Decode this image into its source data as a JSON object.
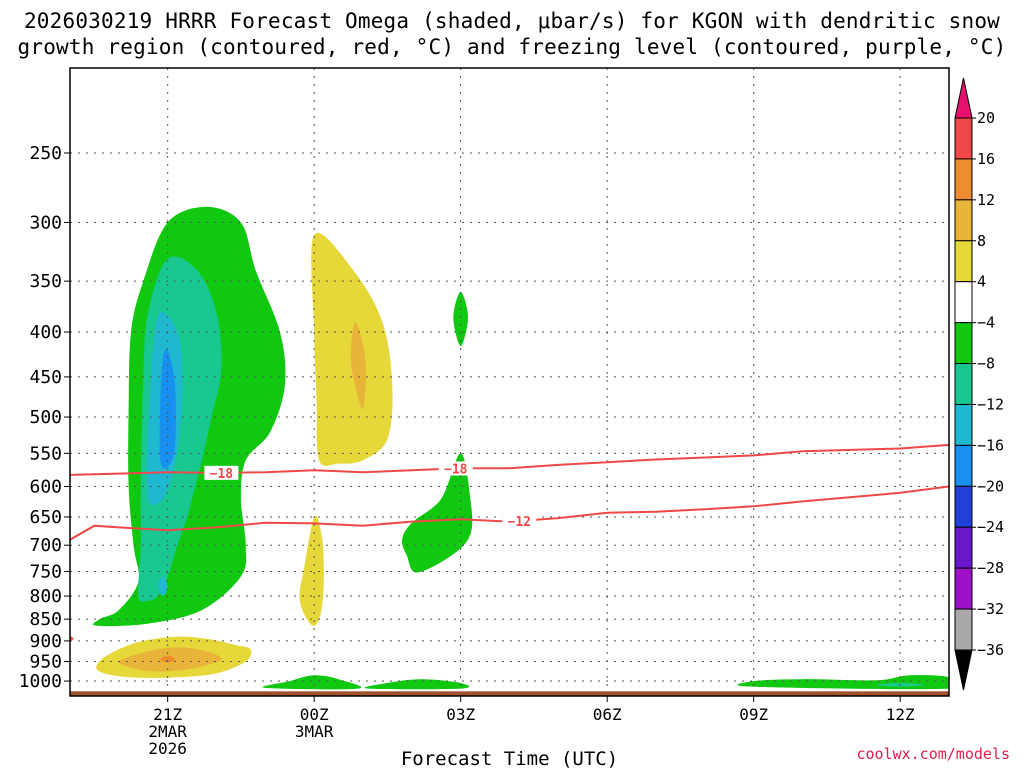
{
  "title_lines": [
    "2026030219 HRRR Forecast Omega (shaded, μbar/s) for KGON with dendritic snow",
    "growth region (contoured, red, °C) and freezing level (contoured, purple, °C)"
  ],
  "credit": "coolwx.com/models",
  "chart_data": {
    "type": "contourf",
    "title": "2026030219 HRRR Forecast Omega (shaded, μbar/s) for KGON with dendritic snow growth region (contoured, red, °C) and freezing level (contoured, purple, °C)",
    "xlabel": "Forecast Time (UTC)",
    "ylabel": "",
    "x_ticks": [
      {
        "hour": 2,
        "lines": [
          "21Z",
          "2MAR",
          "2026"
        ]
      },
      {
        "hour": 5,
        "lines": [
          "00Z",
          "3MAR"
        ]
      },
      {
        "hour": 8,
        "lines": [
          "03Z"
        ]
      },
      {
        "hour": 11,
        "lines": [
          "06Z"
        ]
      },
      {
        "hour": 14,
        "lines": [
          "09Z"
        ]
      },
      {
        "hour": 17,
        "lines": [
          "12Z"
        ]
      }
    ],
    "x_range_hours": [
      0.0,
      18.0
    ],
    "y_range_hpa": [
      1040,
      200
    ],
    "y_scale": "log",
    "y_ticks": [
      250,
      300,
      350,
      400,
      450,
      500,
      550,
      600,
      650,
      700,
      750,
      800,
      850,
      900,
      950,
      1000
    ],
    "grid": true,
    "colorbar": {
      "position": "right",
      "labels": [
        "20",
        "16",
        "12",
        "8",
        "4",
        "−4",
        "−8",
        "−12",
        "−16",
        "−20",
        "−24",
        "−28",
        "−32",
        "−36"
      ],
      "colors": [
        "#e8106e",
        "#f04848",
        "#ee8c30",
        "#e8b43a",
        "#e6d838",
        "#ffffff",
        "#10c810",
        "#18c890",
        "#20b8d0",
        "#1890f0",
        "#2040d8",
        "#6818c8",
        "#a010c8",
        "#a8a8a8",
        "#000000"
      ]
    },
    "shaded_regions": [
      {
        "level": "-8",
        "color": "#10c810",
        "points": [
          [
            1.0,
            830
          ],
          [
            1.4,
            770
          ],
          [
            1.3,
            700
          ],
          [
            1.2,
            600
          ],
          [
            1.2,
            490
          ],
          [
            1.25,
            400
          ],
          [
            1.5,
            350
          ],
          [
            2.0,
            300
          ],
          [
            2.8,
            288
          ],
          [
            3.5,
            300
          ],
          [
            3.8,
            340
          ],
          [
            4.3,
            400
          ],
          [
            4.4,
            460
          ],
          [
            4.1,
            520
          ],
          [
            3.6,
            560
          ],
          [
            3.5,
            620
          ],
          [
            3.6,
            700
          ],
          [
            3.5,
            760
          ],
          [
            2.7,
            830
          ],
          [
            1.6,
            860
          ],
          [
            0.55,
            865
          ],
          [
            0.6,
            850
          ]
        ]
      },
      {
        "level": "-12",
        "color": "#18c890",
        "points": [
          [
            1.4,
            800
          ],
          [
            1.45,
            700
          ],
          [
            1.45,
            600
          ],
          [
            1.5,
            450
          ],
          [
            1.6,
            380
          ],
          [
            2.0,
            330
          ],
          [
            2.6,
            340
          ],
          [
            3.0,
            380
          ],
          [
            3.1,
            440
          ],
          [
            2.9,
            500
          ],
          [
            2.7,
            560
          ],
          [
            2.5,
            620
          ],
          [
            2.4,
            650
          ],
          [
            2.2,
            700
          ],
          [
            2.0,
            760
          ],
          [
            1.8,
            800
          ],
          [
            1.6,
            810
          ]
        ]
      },
      {
        "level": "-16",
        "color": "#20b8d0",
        "points": [
          [
            1.6,
            620
          ],
          [
            1.6,
            520
          ],
          [
            1.7,
            420
          ],
          [
            1.85,
            380
          ],
          [
            2.2,
            400
          ],
          [
            2.3,
            450
          ],
          [
            2.25,
            520
          ],
          [
            2.1,
            580
          ],
          [
            1.9,
            620
          ]
        ]
      },
      {
        "level": "-20",
        "color": "#1890f0",
        "points": [
          [
            1.85,
            560
          ],
          [
            1.85,
            480
          ],
          [
            1.9,
            430
          ],
          [
            2.0,
            420
          ],
          [
            2.15,
            460
          ],
          [
            2.15,
            540
          ],
          [
            2.0,
            570
          ]
        ]
      },
      {
        "level": "-16",
        "color": "#20b8d0",
        "points": [
          [
            1.8,
            780
          ],
          [
            1.9,
            760
          ],
          [
            2.0,
            780
          ],
          [
            1.9,
            800
          ]
        ]
      },
      {
        "level": "4",
        "color": "#e6d838",
        "points": [
          [
            5.0,
            310
          ],
          [
            5.8,
            340
          ],
          [
            6.4,
            390
          ],
          [
            6.6,
            460
          ],
          [
            6.5,
            530
          ],
          [
            6.0,
            560
          ],
          [
            5.5,
            565
          ],
          [
            5.1,
            560
          ],
          [
            5.05,
            480
          ],
          [
            5.0,
            400
          ]
        ]
      },
      {
        "level": "8",
        "color": "#e8b43a",
        "points": [
          [
            5.85,
            390
          ],
          [
            6.05,
            430
          ],
          [
            6.0,
            490
          ],
          [
            5.8,
            450
          ],
          [
            5.75,
            420
          ]
        ]
      },
      {
        "level": "4",
        "color": "#e6d838",
        "points": [
          [
            5.0,
            650
          ],
          [
            5.15,
            680
          ],
          [
            5.2,
            750
          ],
          [
            5.15,
            830
          ],
          [
            5.0,
            865
          ],
          [
            4.8,
            840
          ],
          [
            4.7,
            800
          ],
          [
            4.8,
            740
          ]
        ]
      },
      {
        "level": "4",
        "color": "#e6d838",
        "points": [
          [
            0.6,
            950
          ],
          [
            1.0,
            920
          ],
          [
            1.5,
            900
          ],
          [
            2.2,
            890
          ],
          [
            2.8,
            895
          ],
          [
            3.4,
            910
          ],
          [
            3.7,
            920
          ],
          [
            3.6,
            950
          ],
          [
            3.0,
            980
          ],
          [
            2.2,
            990
          ],
          [
            1.2,
            990
          ],
          [
            0.6,
            975
          ]
        ]
      },
      {
        "level": "8",
        "color": "#e8b43a",
        "points": [
          [
            1.0,
            950
          ],
          [
            1.6,
            925
          ],
          [
            2.2,
            915
          ],
          [
            2.8,
            925
          ],
          [
            3.1,
            945
          ],
          [
            2.6,
            965
          ],
          [
            2.0,
            975
          ],
          [
            1.4,
            970
          ]
        ]
      },
      {
        "level": "12",
        "color": "#ee8c30",
        "points": [
          [
            1.85,
            945
          ],
          [
            2.0,
            935
          ],
          [
            2.15,
            945
          ],
          [
            2.0,
            952
          ]
        ]
      },
      {
        "level": "-8",
        "color": "#10c810",
        "points": [
          [
            8.0,
            550
          ],
          [
            8.2,
            620
          ],
          [
            8.2,
            680
          ],
          [
            7.8,
            720
          ],
          [
            7.1,
            752
          ],
          [
            6.9,
            720
          ],
          [
            6.8,
            690
          ],
          [
            7.0,
            660
          ],
          [
            7.6,
            620
          ]
        ]
      },
      {
        "level": "-8",
        "color": "#10c810",
        "points": [
          [
            8.0,
            360
          ],
          [
            8.15,
            385
          ],
          [
            8.0,
            415
          ],
          [
            7.85,
            385
          ]
        ]
      },
      {
        "level": "-8",
        "color": "#10c810",
        "points": [
          [
            4.0,
            1018
          ],
          [
            4.5,
            1000
          ],
          [
            5.0,
            985
          ],
          [
            5.5,
            995
          ],
          [
            5.9,
            1020
          ]
        ]
      },
      {
        "level": "-8",
        "color": "#10c810",
        "points": [
          [
            6.1,
            1020
          ],
          [
            6.5,
            1005
          ],
          [
            7.2,
            995
          ],
          [
            8.0,
            1005
          ],
          [
            8.0,
            1020
          ]
        ]
      },
      {
        "level": "-8",
        "color": "#10c810",
        "points": [
          [
            14.0,
            1015
          ],
          [
            14.0,
            1000
          ],
          [
            15.0,
            995
          ],
          [
            16.5,
            998
          ],
          [
            17.2,
            985
          ],
          [
            18.0,
            990
          ],
          [
            18.0,
            1020
          ]
        ]
      },
      {
        "level": "-12",
        "color": "#18c890",
        "points": [
          [
            16.5,
            1010
          ],
          [
            17.0,
            1005
          ],
          [
            17.5,
            1010
          ],
          [
            17.0,
            1015
          ]
        ]
      }
    ],
    "contours": [
      {
        "level": -18,
        "label": "−18",
        "color": "#f04848",
        "label_positions": [
          3.1,
          7.9
        ],
        "points": [
          [
            0.0,
            582
          ],
          [
            1.0,
            580
          ],
          [
            2.0,
            578
          ],
          [
            3.0,
            579
          ],
          [
            4.0,
            578
          ],
          [
            5.0,
            575
          ],
          [
            6.0,
            578
          ],
          [
            7.0,
            575
          ],
          [
            8.0,
            572
          ],
          [
            9.0,
            572
          ],
          [
            10.0,
            567
          ],
          [
            11.0,
            563
          ],
          [
            12.0,
            559
          ],
          [
            13.0,
            556
          ],
          [
            14.0,
            553
          ],
          [
            15.0,
            547
          ],
          [
            16.0,
            545
          ],
          [
            17.0,
            543
          ],
          [
            18.0,
            538
          ]
        ]
      },
      {
        "level": -12,
        "label": "−12",
        "color": "#f04848",
        "label_positions": [
          9.2
        ],
        "points": [
          [
            0.0,
            690
          ],
          [
            0.5,
            665
          ],
          [
            1.0,
            668
          ],
          [
            2.0,
            673
          ],
          [
            3.0,
            668
          ],
          [
            4.0,
            660
          ],
          [
            5.0,
            661
          ],
          [
            6.0,
            665
          ],
          [
            7.0,
            658
          ],
          [
            8.0,
            654
          ],
          [
            9.0,
            658
          ],
          [
            10.0,
            652
          ],
          [
            11.0,
            643
          ],
          [
            12.0,
            641
          ],
          [
            13.0,
            637
          ],
          [
            14.0,
            632
          ],
          [
            15.0,
            624
          ],
          [
            16.0,
            617
          ],
          [
            17.0,
            610
          ],
          [
            18.0,
            600
          ]
        ]
      },
      {
        "level": -6,
        "label": "",
        "color": "#f04848",
        "label_positions": [],
        "points": [
          [
            0.0,
            890
          ],
          [
            0.05,
            895
          ],
          [
            0.0,
            900
          ]
        ]
      }
    ],
    "ground": {
      "color": "#a0522d",
      "pressure_hpa": 1030
    }
  }
}
